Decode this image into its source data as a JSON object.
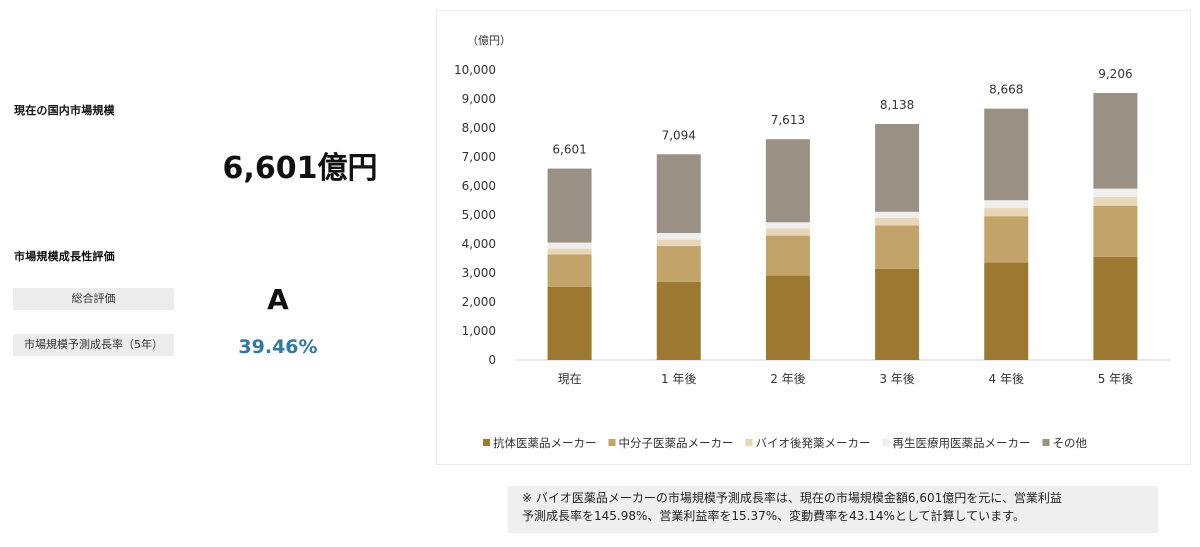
{
  "summary": {
    "market_size_heading": "現在の国内市場規模",
    "market_size_value": "6,601億円",
    "growth_heading": "市場規模成長性評価",
    "overall_label": "総合評価",
    "overall_grade": "A",
    "growth_rate_label": "市場規模予測成長率（5年）",
    "growth_rate_value": "39.46%"
  },
  "note": {
    "line1": "※ バイオ医薬品メーカーの市場規模予測成長率は、現在の市場規模金額6,601億円を元に、営業利益",
    "line2": "予測成長率を145.98%、営業利益率を15.37%、変動費率を43.14%として計算しています。"
  },
  "chart_data": {
    "type": "bar",
    "stacked": true,
    "unit_label": "（億円）",
    "categories": [
      "現在",
      "1 年後",
      "2 年後",
      "3 年後",
      "4 年後",
      "5 年後"
    ],
    "totals": [
      6601,
      7094,
      7613,
      8138,
      8668,
      9206
    ],
    "total_labels": [
      "6,601",
      "7,094",
      "7,613",
      "8,138",
      "8,668",
      "9,206"
    ],
    "series": [
      {
        "name": "抗体医薬品メーカー",
        "color": "#9c7830",
        "values": [
          2520,
          2700,
          2910,
          3140,
          3360,
          3560
        ]
      },
      {
        "name": "中分子医薬品メーカー",
        "color": "#c2a46b",
        "values": [
          1120,
          1230,
          1380,
          1500,
          1600,
          1760
        ]
      },
      {
        "name": "バイオ後発薬メーカー",
        "color": "#e8d6b8",
        "values": [
          200,
          220,
          250,
          260,
          280,
          300
        ]
      },
      {
        "name": "再生医療用医薬品メーカー",
        "color": "#eeeeee",
        "values": [
          210,
          230,
          210,
          210,
          270,
          290
        ]
      },
      {
        "name": "その他",
        "color": "#9a9084",
        "values": [
          2551,
          2714,
          2863,
          3028,
          3158,
          3296
        ]
      }
    ],
    "ylim": [
      0,
      10000
    ],
    "yticks": [
      "0",
      "1,000",
      "2,000",
      "3,000",
      "4,000",
      "5,000",
      "6,000",
      "7,000",
      "8,000",
      "9,000",
      "10,000"
    ],
    "ytick_values": [
      0,
      1000,
      2000,
      3000,
      4000,
      5000,
      6000,
      7000,
      8000,
      9000,
      10000
    ],
    "legend_position": "bottom",
    "grid": false
  }
}
